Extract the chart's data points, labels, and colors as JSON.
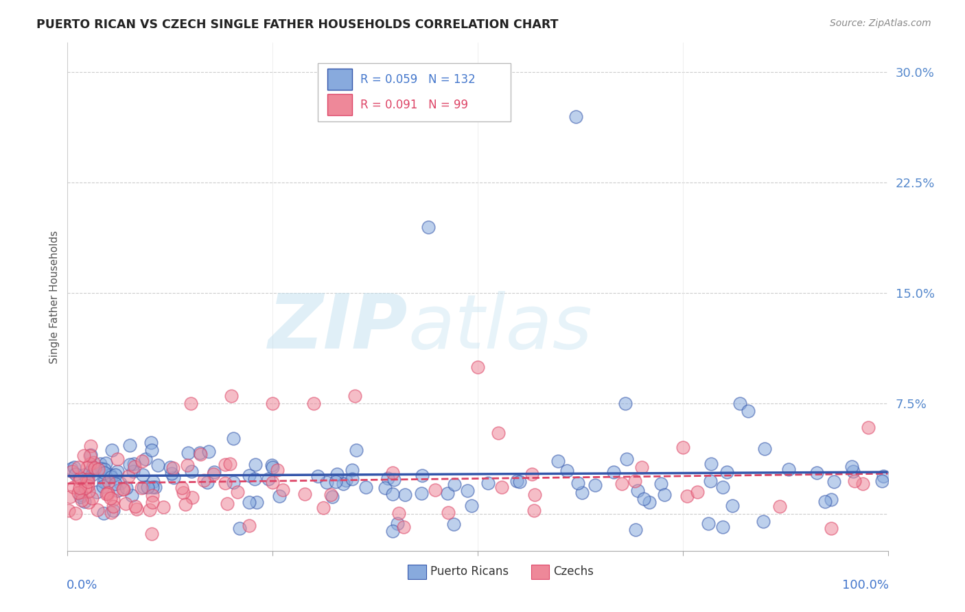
{
  "title": "PUERTO RICAN VS CZECH SINGLE FATHER HOUSEHOLDS CORRELATION CHART",
  "source": "Source: ZipAtlas.com",
  "ylabel": "Single Father Households",
  "blue_color": "#88AADD",
  "pink_color": "#EE8899",
  "blue_line_color": "#3355AA",
  "pink_line_color": "#DD4466",
  "text_color": "#4477CC",
  "right_tick_color": "#5588CC",
  "legend_R_blue": "0.059",
  "legend_N_blue": "132",
  "legend_R_pink": "0.091",
  "legend_N_pink": "99",
  "xlim": [
    0.0,
    1.0
  ],
  "ylim": [
    -0.025,
    0.32
  ],
  "ytick_vals": [
    0.0,
    0.075,
    0.15,
    0.225,
    0.3
  ],
  "ytick_labels": [
    "",
    "7.5%",
    "15.0%",
    "22.5%",
    "30.0%"
  ]
}
